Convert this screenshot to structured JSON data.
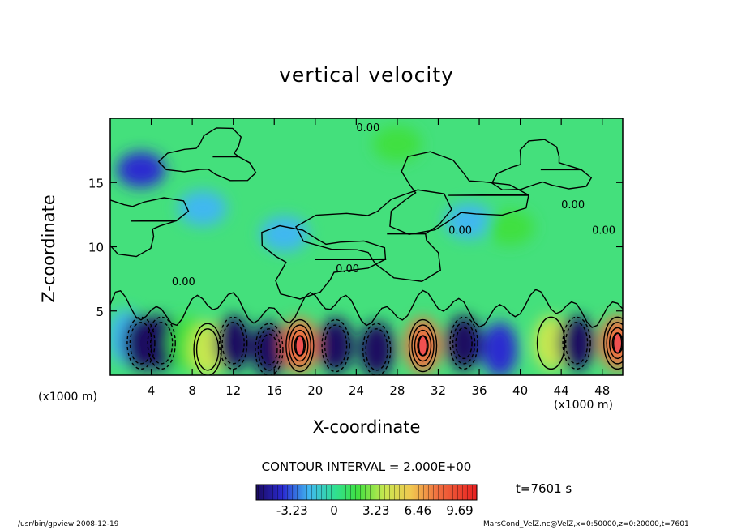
{
  "chart_data": {
    "type": "heatmap",
    "title": "vertical velocity",
    "xlabel": "X-coordinate",
    "ylabel": "Z-coordinate",
    "x_unit_left": "(x1000 m)",
    "x_unit_right": "(x1000 m)",
    "xlim": [
      0,
      50
    ],
    "ylim": [
      0,
      20
    ],
    "x_ticks": [
      "4",
      "8",
      "12",
      "16",
      "20",
      "24",
      "28",
      "32",
      "36",
      "40",
      "44",
      "48"
    ],
    "x_tick_values": [
      4,
      8,
      12,
      16,
      20,
      24,
      28,
      32,
      36,
      40,
      44,
      48
    ],
    "y_ticks": [
      "5",
      "10",
      "15"
    ],
    "y_tick_values": [
      5,
      10,
      15
    ],
    "contour_interval_text": "CONTOUR INTERVAL = 2.000E+00",
    "contour_labels": [
      "0.00",
      "0.00",
      "0.00",
      "0.00",
      "0.00",
      "0.00"
    ],
    "colorbar": {
      "labels": [
        "-3.23",
        "0",
        "3.23",
        "6.46",
        "9.69"
      ],
      "values": [
        -3.23,
        0,
        3.23,
        6.46,
        9.69
      ],
      "min": -6.0,
      "max": 11.0
    },
    "cells": [
      {
        "x": 1.5,
        "z": 3.0,
        "w": -1.5
      },
      {
        "x": 3.0,
        "z": 2.5,
        "w": -4.0
      },
      {
        "x": 5.0,
        "z": 2.5,
        "w": -4.5
      },
      {
        "x": 7.5,
        "z": 2.5,
        "w": 1.0
      },
      {
        "x": 9.5,
        "z": 2.0,
        "w": 4.0
      },
      {
        "x": 12.0,
        "z": 2.5,
        "w": -4.0
      },
      {
        "x": 15.5,
        "z": 2.0,
        "w": -6.0
      },
      {
        "x": 18.5,
        "z": 2.3,
        "w": 10.0
      },
      {
        "x": 22.0,
        "z": 2.3,
        "w": -4.0
      },
      {
        "x": 26.0,
        "z": 2.0,
        "w": -5.5
      },
      {
        "x": 30.5,
        "z": 2.3,
        "w": 10.5
      },
      {
        "x": 34.5,
        "z": 2.5,
        "w": -6.0
      },
      {
        "x": 38.0,
        "z": 2.0,
        "w": -2.0
      },
      {
        "x": 43.0,
        "z": 2.5,
        "w": 3.0
      },
      {
        "x": 45.5,
        "z": 2.5,
        "w": -5.0
      },
      {
        "x": 49.5,
        "z": 2.5,
        "w": 9.5
      },
      {
        "x": 17.0,
        "z": 11.0,
        "w": -1.5
      },
      {
        "x": 9.0,
        "z": 13.0,
        "w": -1.5
      },
      {
        "x": 35.0,
        "z": 12.0,
        "w": -1.0
      },
      {
        "x": 28.0,
        "z": 18.0,
        "w": 1.2
      },
      {
        "x": 39.0,
        "z": 11.5,
        "w": 1.5
      },
      {
        "x": 3.0,
        "z": 16.0,
        "w": -2.5
      }
    ]
  },
  "time_label": "t=7601 s",
  "footer_left": "/usr/bin/gpview   2008-12-19",
  "footer_right": "MarsCond_VelZ.nc@VelZ,x=0:50000,z=0:20000,t=7601",
  "colors": {
    "frame": "#000000",
    "background": "#ffffff"
  }
}
